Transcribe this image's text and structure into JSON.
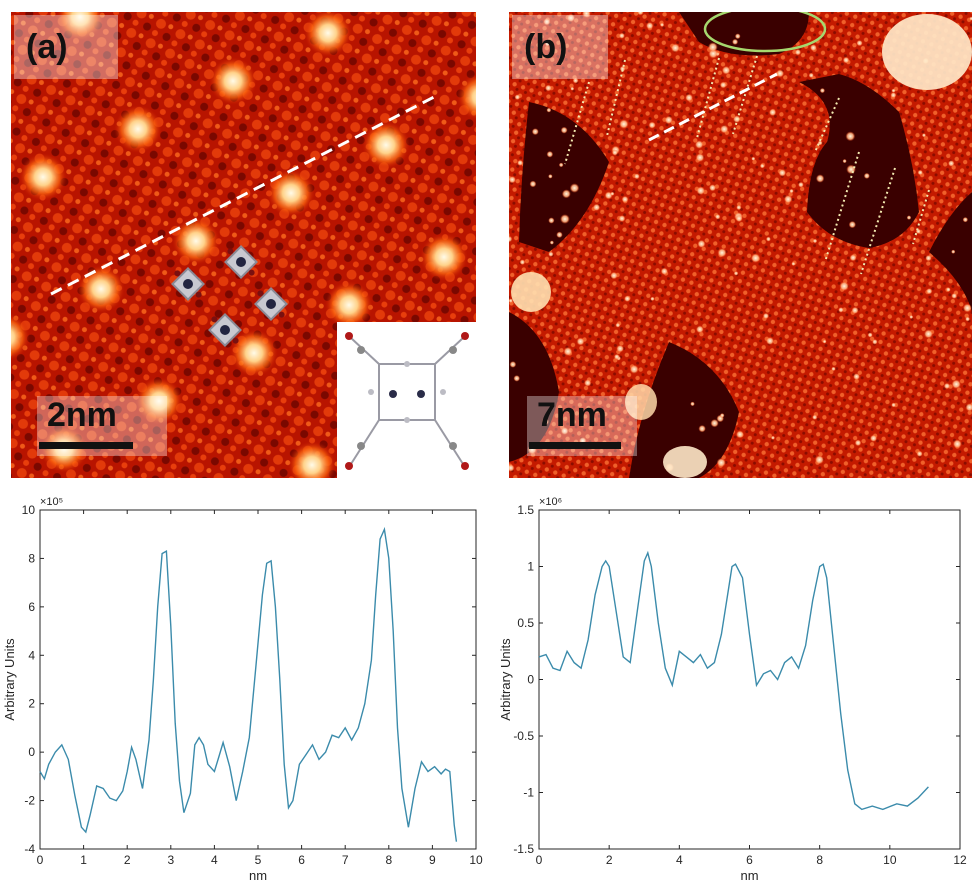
{
  "panels": [
    {
      "label": "(a)",
      "scale_bar": "2nm"
    },
    {
      "label": "(b)",
      "scale_bar": "7nm"
    }
  ],
  "colors": {
    "stm_dark": "#5a0000",
    "stm_mid": "#c81800",
    "stm_bright": "#ffe8c0",
    "profile_line": "#3b8bab",
    "dashed_line": "#ffffff",
    "molecular_rows": "#f3eab0",
    "highlight_ellipse": "#a6d86e"
  },
  "chart_data": [
    {
      "type": "line",
      "xlabel": "nm",
      "ylabel": "Arbitrary Units",
      "exponent_label": "×10⁵",
      "xlim": [
        0,
        10
      ],
      "ylim": [
        -4,
        10
      ],
      "xticks": [
        "0",
        "1",
        "2",
        "3",
        "4",
        "5",
        "6",
        "7",
        "8",
        "9",
        "10"
      ],
      "yticks": [
        "-4",
        "-2",
        "0",
        "2",
        "4",
        "6",
        "8",
        "10"
      ],
      "series": [
        {
          "x": [
            0,
            0.1,
            0.2,
            0.35,
            0.5,
            0.65,
            0.8,
            0.95,
            1.05,
            1.15,
            1.3,
            1.45,
            1.6,
            1.75,
            1.9,
            2.0,
            2.1,
            2.2,
            2.35,
            2.5,
            2.6,
            2.7,
            2.8,
            2.9,
            3.0,
            3.1,
            3.2,
            3.3,
            3.45,
            3.55,
            3.65,
            3.75,
            3.85,
            4.0,
            4.1,
            4.2,
            4.35,
            4.5,
            4.65,
            4.8,
            4.95,
            5.1,
            5.2,
            5.3,
            5.4,
            5.5,
            5.6,
            5.7,
            5.8,
            5.95,
            6.1,
            6.25,
            6.4,
            6.55,
            6.7,
            6.85,
            7.0,
            7.15,
            7.3,
            7.45,
            7.6,
            7.7,
            7.8,
            7.9,
            8.0,
            8.1,
            8.2,
            8.3,
            8.45,
            8.6,
            8.75,
            8.9,
            9.05,
            9.2,
            9.3,
            9.4,
            9.5,
            9.55
          ],
          "values": [
            -0.8,
            -1.1,
            -0.5,
            0,
            0.3,
            -0.3,
            -1.8,
            -3.1,
            -3.3,
            -2.6,
            -1.4,
            -1.5,
            -1.9,
            -2.0,
            -1.6,
            -0.8,
            0.2,
            -0.3,
            -1.5,
            0.5,
            3.0,
            6.0,
            8.2,
            8.3,
            5.2,
            1.2,
            -1.2,
            -2.5,
            -1.7,
            0.3,
            0.6,
            0.3,
            -0.5,
            -0.8,
            -0.2,
            0.4,
            -0.6,
            -2.0,
            -0.8,
            0.6,
            3.5,
            6.5,
            7.8,
            7.9,
            6.0,
            3.0,
            -0.5,
            -2.3,
            -2.0,
            -0.5,
            -0.1,
            0.3,
            -0.3,
            0.0,
            0.7,
            0.6,
            1.0,
            0.5,
            1.0,
            2.0,
            3.8,
            6.5,
            8.8,
            9.2,
            8.0,
            5.0,
            1.0,
            -1.5,
            -3.1,
            -1.5,
            -0.4,
            -0.8,
            -0.6,
            -0.9,
            -0.7,
            -0.8,
            -3.0,
            -3.7
          ]
        }
      ]
    },
    {
      "type": "line",
      "xlabel": "nm",
      "ylabel": "Arbitrary Units",
      "exponent_label": "×10⁶",
      "xlim": [
        0,
        12
      ],
      "ylim": [
        -1.5,
        1.5
      ],
      "xticks": [
        "0",
        "2",
        "4",
        "6",
        "8",
        "10",
        "12"
      ],
      "yticks": [
        "-1.5",
        "-1",
        "-0.5",
        "0",
        "0.5",
        "1",
        "1.5"
      ],
      "series": [
        {
          "x": [
            0,
            0.2,
            0.4,
            0.6,
            0.8,
            1.0,
            1.2,
            1.4,
            1.6,
            1.8,
            1.9,
            2.0,
            2.2,
            2.4,
            2.6,
            2.8,
            3.0,
            3.1,
            3.2,
            3.4,
            3.6,
            3.8,
            4.0,
            4.2,
            4.4,
            4.6,
            4.8,
            5.0,
            5.2,
            5.4,
            5.5,
            5.6,
            5.8,
            6.0,
            6.2,
            6.4,
            6.6,
            6.8,
            7.0,
            7.2,
            7.4,
            7.6,
            7.8,
            8.0,
            8.1,
            8.2,
            8.4,
            8.6,
            8.8,
            9.0,
            9.2,
            9.5,
            9.8,
            10.2,
            10.5,
            10.8,
            11.1
          ],
          "values": [
            0.2,
            0.22,
            0.1,
            0.08,
            0.25,
            0.15,
            0.1,
            0.35,
            0.75,
            1.0,
            1.05,
            1.0,
            0.6,
            0.2,
            0.15,
            0.6,
            1.05,
            1.12,
            1.0,
            0.5,
            0.1,
            -0.05,
            0.25,
            0.2,
            0.15,
            0.22,
            0.1,
            0.15,
            0.4,
            0.8,
            1.0,
            1.02,
            0.9,
            0.4,
            -0.05,
            0.05,
            0.08,
            0.0,
            0.15,
            0.2,
            0.1,
            0.3,
            0.7,
            1.0,
            1.02,
            0.9,
            0.3,
            -0.3,
            -0.8,
            -1.1,
            -1.15,
            -1.12,
            -1.15,
            -1.1,
            -1.12,
            -1.05,
            -0.95
          ]
        }
      ]
    }
  ]
}
